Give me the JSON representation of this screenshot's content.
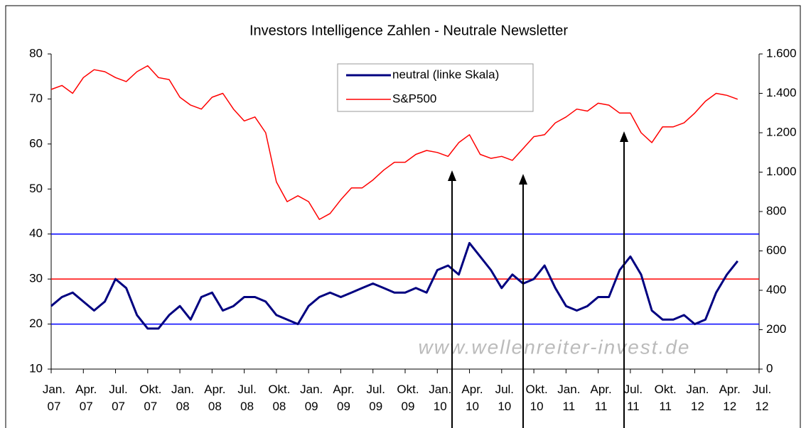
{
  "chart_data": {
    "type": "line",
    "title": "Investors Intelligence Zahlen - Neutrale Newsletter",
    "watermark": "www.wellenreiter-invest.de",
    "x": [
      "2007-01",
      "2007-02",
      "2007-03",
      "2007-04",
      "2007-05",
      "2007-06",
      "2007-07",
      "2007-08",
      "2007-09",
      "2007-10",
      "2007-11",
      "2007-12",
      "2008-01",
      "2008-02",
      "2008-03",
      "2008-04",
      "2008-05",
      "2008-06",
      "2008-07",
      "2008-08",
      "2008-09",
      "2008-10",
      "2008-11",
      "2008-12",
      "2009-01",
      "2009-02",
      "2009-03",
      "2009-04",
      "2009-05",
      "2009-06",
      "2009-07",
      "2009-08",
      "2009-09",
      "2009-10",
      "2009-11",
      "2009-12",
      "2010-01",
      "2010-02",
      "2010-03",
      "2010-04",
      "2010-05",
      "2010-06",
      "2010-07",
      "2010-08",
      "2010-09",
      "2010-10",
      "2010-11",
      "2010-12",
      "2011-01",
      "2011-02",
      "2011-03",
      "2011-04",
      "2011-05",
      "2011-06",
      "2011-07",
      "2011-08",
      "2011-09",
      "2011-10",
      "2011-11",
      "2011-12",
      "2012-01",
      "2012-02",
      "2012-03",
      "2012-04",
      "2012-05"
    ],
    "series": [
      {
        "name": "neutral (linke Skala)",
        "color": "#000080",
        "axis": "y",
        "values": [
          24,
          26,
          27,
          25,
          23,
          25,
          30,
          28,
          22,
          19,
          19,
          22,
          24,
          21,
          26,
          27,
          23,
          24,
          26,
          26,
          25,
          22,
          21,
          20,
          24,
          26,
          27,
          26,
          27,
          28,
          29,
          28,
          27,
          27,
          28,
          27,
          32,
          33,
          31,
          38,
          35,
          32,
          28,
          31,
          29,
          30,
          33,
          28,
          24,
          23,
          24,
          26,
          26,
          32,
          35,
          31,
          23,
          21,
          21,
          22,
          20,
          21,
          27,
          31,
          34
        ]
      },
      {
        "name": "S&P500",
        "color": "#ff0000",
        "axis": "y2",
        "values": [
          1420,
          1440,
          1400,
          1480,
          1520,
          1510,
          1480,
          1460,
          1510,
          1540,
          1480,
          1470,
          1380,
          1340,
          1320,
          1380,
          1400,
          1320,
          1260,
          1280,
          1200,
          950,
          850,
          880,
          850,
          760,
          790,
          860,
          920,
          920,
          960,
          1010,
          1050,
          1050,
          1090,
          1110,
          1100,
          1080,
          1150,
          1190,
          1090,
          1070,
          1080,
          1060,
          1120,
          1180,
          1190,
          1250,
          1280,
          1320,
          1310,
          1350,
          1340,
          1300,
          1300,
          1200,
          1150,
          1230,
          1230,
          1250,
          1300,
          1360,
          1400,
          1390,
          1370
        ]
      }
    ],
    "xlim": [
      "2007-01",
      "2012-07"
    ],
    "xticks": [
      {
        "value": "2007-01",
        "label": "Jan.\n07"
      },
      {
        "value": "2007-04",
        "label": "Apr.\n07"
      },
      {
        "value": "2007-07",
        "label": "Jul.\n07"
      },
      {
        "value": "2007-10",
        "label": "Okt.\n07"
      },
      {
        "value": "2008-01",
        "label": "Jan.\n08"
      },
      {
        "value": "2008-04",
        "label": "Apr.\n08"
      },
      {
        "value": "2008-07",
        "label": "Jul.\n08"
      },
      {
        "value": "2008-10",
        "label": "Okt.\n08"
      },
      {
        "value": "2009-01",
        "label": "Jan.\n09"
      },
      {
        "value": "2009-04",
        "label": "Apr.\n09"
      },
      {
        "value": "2009-07",
        "label": "Jul.\n09"
      },
      {
        "value": "2009-10",
        "label": "Okt.\n09"
      },
      {
        "value": "2010-01",
        "label": "Jan.\n10"
      },
      {
        "value": "2010-04",
        "label": "Apr.\n10"
      },
      {
        "value": "2010-07",
        "label": "Jul.\n10"
      },
      {
        "value": "2010-10",
        "label": "Okt.\n10"
      },
      {
        "value": "2011-01",
        "label": "Jan.\n11"
      },
      {
        "value": "2011-04",
        "label": "Apr.\n11"
      },
      {
        "value": "2011-07",
        "label": "Jul.\n11"
      },
      {
        "value": "2011-10",
        "label": "Okt.\n11"
      },
      {
        "value": "2012-01",
        "label": "Jan.\n12"
      },
      {
        "value": "2012-04",
        "label": "Apr.\n12"
      },
      {
        "value": "2012-07",
        "label": "Jul.\n12"
      }
    ],
    "ylim": [
      10,
      80
    ],
    "yticks": [
      10,
      20,
      30,
      40,
      50,
      60,
      70,
      80
    ],
    "y2lim": [
      0,
      1600
    ],
    "y2ticks": [
      0,
      200,
      400,
      600,
      800,
      {
        "value": 1000,
        "label": "1.000"
      },
      {
        "value": 1200,
        "label": "1.200"
      },
      {
        "value": 1400,
        "label": "1.400"
      },
      {
        "value": 1600,
        "label": "1.600"
      }
    ],
    "hlines": [
      {
        "value": 40,
        "color": "#0000ff"
      },
      {
        "value": 30,
        "color": "#ff0000"
      },
      {
        "value": 20,
        "color": "#0000ff"
      }
    ]
  }
}
